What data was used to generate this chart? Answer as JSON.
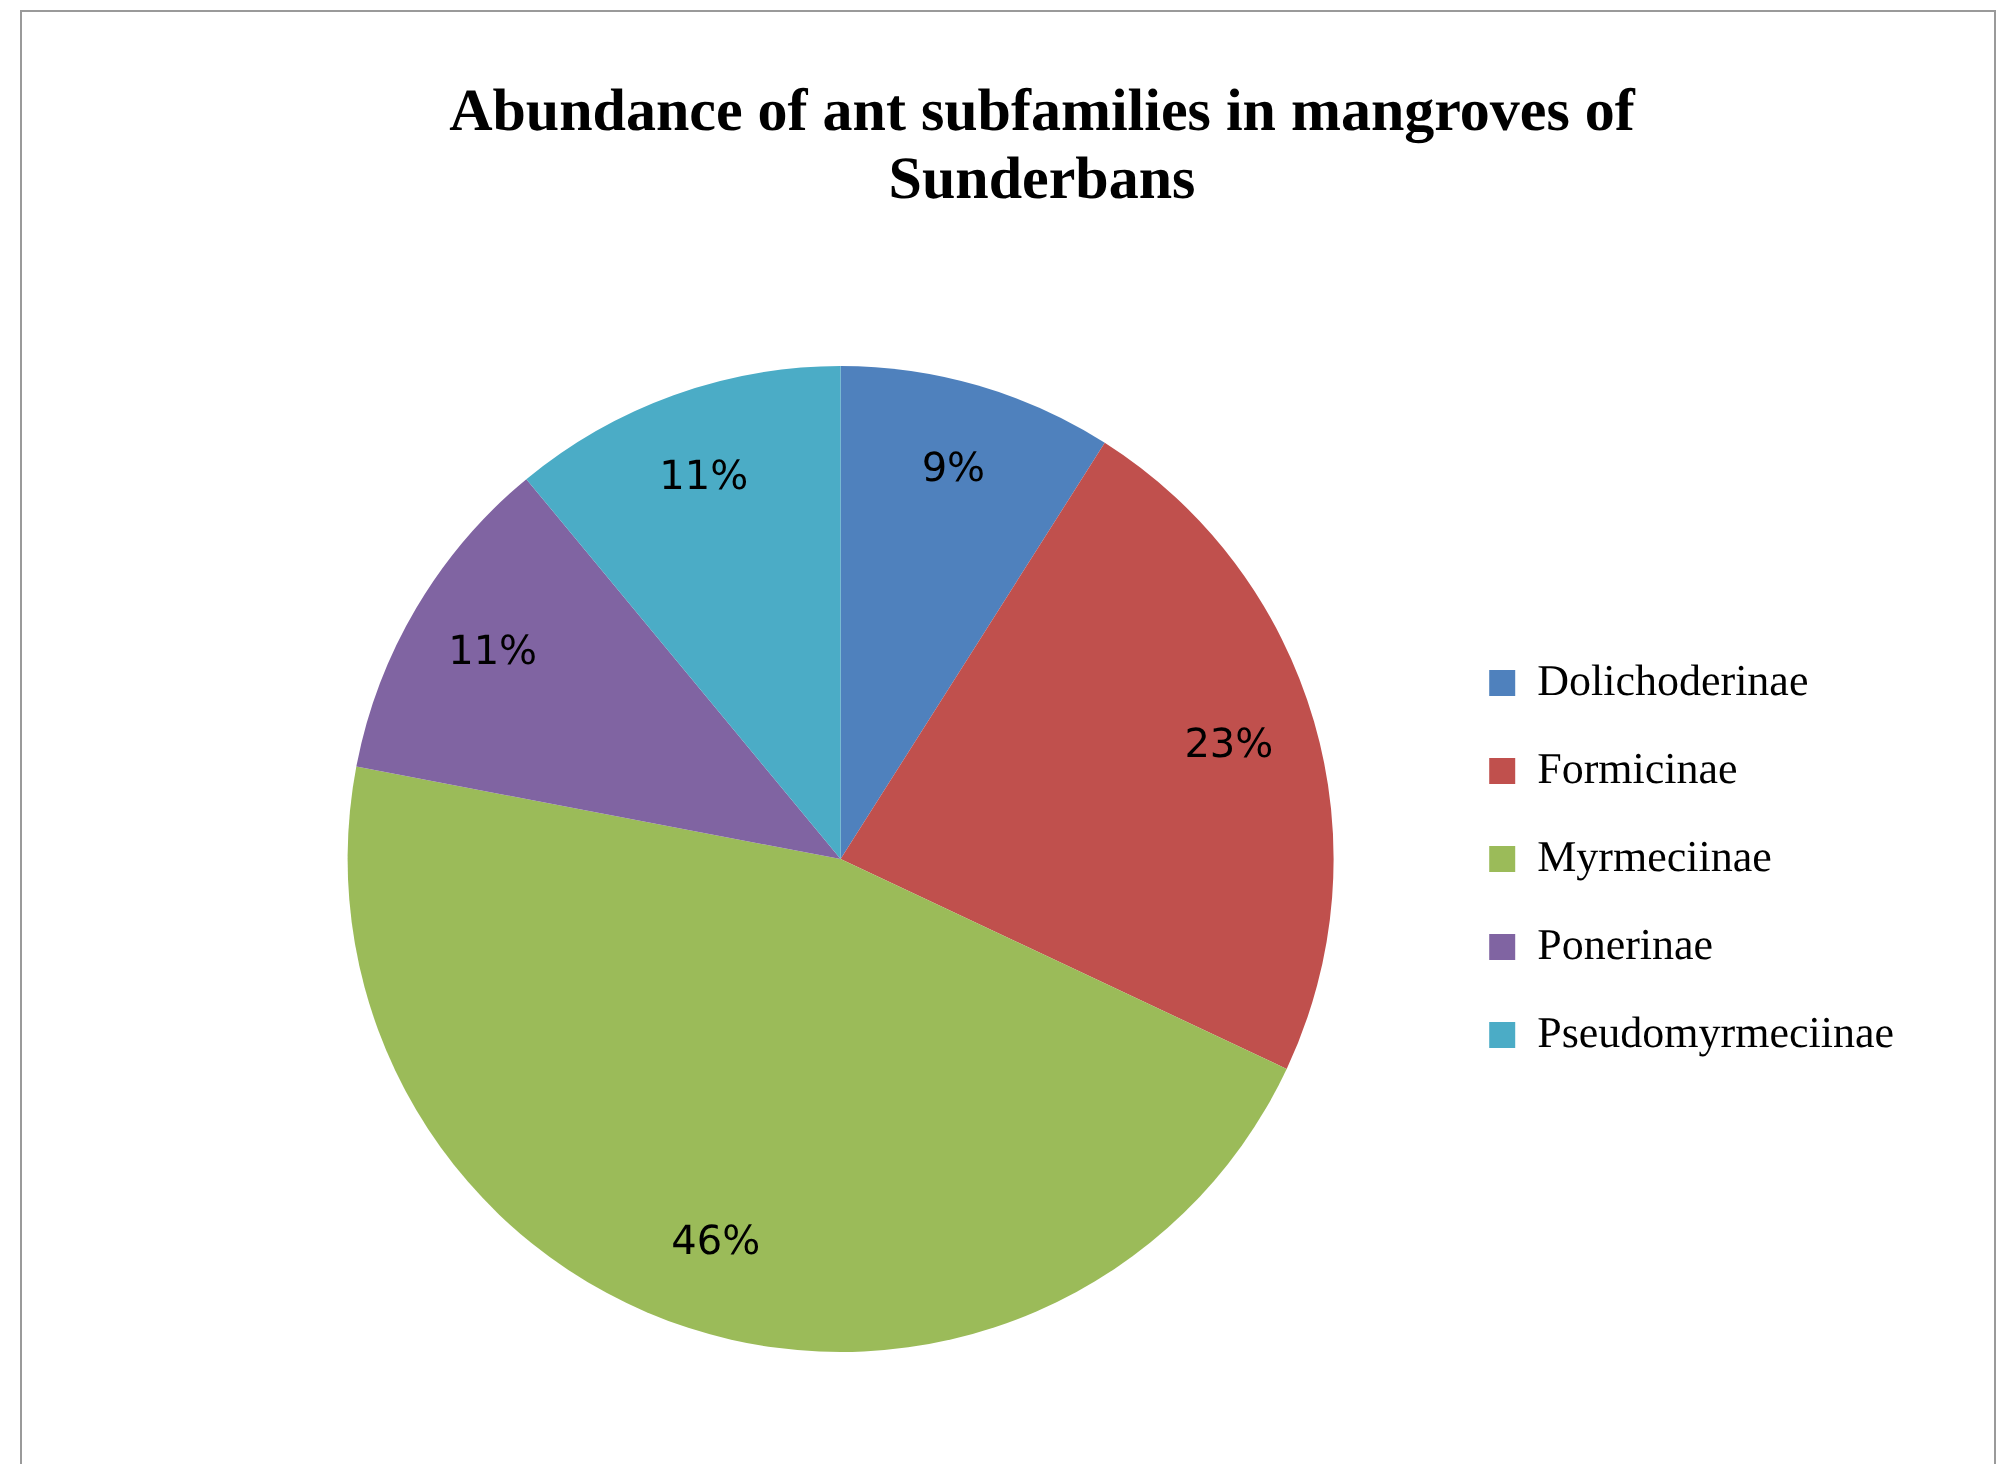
{
  "chart_data": {
    "type": "pie",
    "title": "Abundance of ant subfamilies in mangroves of Sunderbans",
    "categories": [
      "Dolichoderinae",
      "Formicinae",
      "Myrmeciinae",
      "Ponerinae",
      "Pseudomyrmeciinae"
    ],
    "values": [
      9,
      23,
      46,
      11,
      11
    ],
    "colors": [
      "#4f81bd",
      "#c0504d",
      "#9bbb59",
      "#8064a2",
      "#4bacc6"
    ],
    "value_labels": [
      "9%",
      "23%",
      "46%",
      "11%",
      "11%"
    ],
    "legend": "right"
  }
}
